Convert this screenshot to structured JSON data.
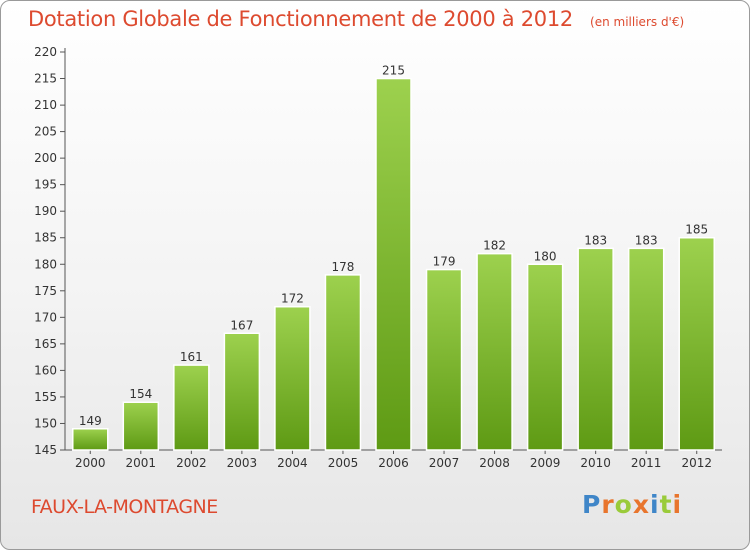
{
  "title": "Dotation Globale de Fonctionnement de 2000 à 2012",
  "unit": "(en milliers d'€)",
  "commune": "FAUX-LA-MONTAGNE",
  "logo_text": "Proxiti",
  "colors": {
    "title": "#dd4a2f",
    "bar_light": "#9dd14e",
    "bar_dark": "#5e9a14",
    "logo": [
      "#3f86c8",
      "#e8752d",
      "#9acb3a",
      "#e8752d",
      "#3f86c8",
      "#9acb3a",
      "#e8752d"
    ]
  },
  "chart_data": {
    "type": "bar",
    "title": "Dotation Globale de Fonctionnement de 2000 à 2012",
    "categories": [
      "2000",
      "2001",
      "2002",
      "2003",
      "2004",
      "2005",
      "2006",
      "2007",
      "2008",
      "2009",
      "2010",
      "2011",
      "2012"
    ],
    "values": [
      149,
      154,
      161,
      167,
      172,
      178,
      215,
      179,
      182,
      180,
      183,
      183,
      185
    ],
    "ylim": [
      145,
      220
    ],
    "yticks": [
      145,
      150,
      155,
      160,
      165,
      170,
      175,
      180,
      185,
      190,
      195,
      200,
      205,
      210,
      215,
      220
    ],
    "grid": false,
    "legend": "none"
  }
}
